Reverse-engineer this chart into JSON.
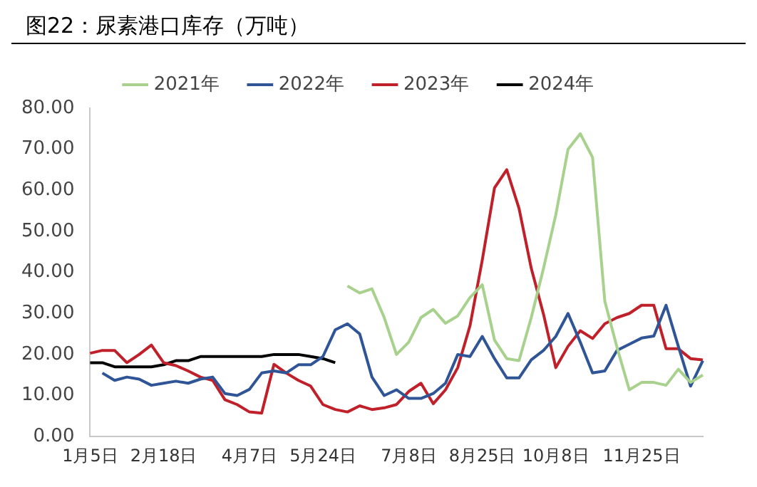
{
  "chart_data": {
    "type": "line",
    "title": "图22：尿素港口库存（万吨）",
    "categories": [
      "1月5日",
      null,
      null,
      null,
      null,
      null,
      "2月18日",
      null,
      null,
      null,
      null,
      null,
      null,
      "4月7日",
      null,
      null,
      null,
      null,
      null,
      "5月24日",
      null,
      null,
      null,
      null,
      null,
      null,
      "7月8日",
      null,
      null,
      null,
      null,
      null,
      "8月25日",
      null,
      null,
      null,
      null,
      null,
      "10月8日",
      null,
      null,
      null,
      null,
      null,
      null,
      "11月25日",
      null,
      null,
      null,
      null,
      null
    ],
    "series": [
      {
        "name": "2021年",
        "color": "#a9d18e",
        "values": [
          null,
          null,
          null,
          null,
          null,
          null,
          null,
          null,
          null,
          null,
          null,
          null,
          null,
          null,
          null,
          null,
          null,
          null,
          null,
          null,
          null,
          36.7,
          35,
          36,
          29,
          20,
          23,
          29,
          31,
          27.6,
          29.4,
          33.9,
          37,
          23.5,
          19,
          18.5,
          29,
          41,
          54,
          70,
          73.8,
          68,
          33,
          21.7,
          11.4,
          13.2,
          13.2,
          12.5,
          16.4,
          13.2,
          15
        ]
      },
      {
        "name": "2022年",
        "color": "#2f5597",
        "values": [
          null,
          15.5,
          13.7,
          14.5,
          14,
          12.5,
          13,
          13.5,
          13,
          14,
          14.5,
          10.5,
          10,
          11.5,
          15.5,
          16,
          15.5,
          17.5,
          17.5,
          19.5,
          26,
          27.5,
          25,
          14.5,
          10,
          11.4,
          9.3,
          9.3,
          10.5,
          13,
          20,
          19.5,
          24.4,
          19,
          14.3,
          14.3,
          18.7,
          21,
          24.4,
          30,
          23,
          15.5,
          16,
          21,
          22.5,
          24,
          24.5,
          32,
          22,
          12.3,
          18.5
        ]
      },
      {
        "name": "2023年",
        "color": "#c0202a",
        "values": [
          20.3,
          21,
          21,
          18,
          20,
          22.3,
          18,
          17.3,
          16,
          14.5,
          13.7,
          9,
          7.8,
          6,
          5.7,
          17.6,
          15.5,
          13.7,
          12.3,
          7.8,
          6.6,
          6,
          7.5,
          6.6,
          7,
          7.8,
          11,
          13,
          8,
          11.4,
          16.8,
          27,
          43,
          60.6,
          65,
          55.6,
          41,
          29.8,
          16.8,
          22,
          25.8,
          23.9,
          27.5,
          29,
          30,
          32,
          32,
          21.4,
          21.4,
          19,
          18.7
        ]
      },
      {
        "name": "2024年",
        "color": "#000000",
        "values": [
          18,
          18,
          17,
          17,
          17,
          17,
          17.5,
          18.5,
          18.5,
          19.5,
          19.5,
          19.5,
          19.5,
          19.5,
          19.5,
          20,
          20,
          20,
          19.5,
          19,
          18,
          null,
          null,
          null,
          null,
          null,
          null,
          null,
          null,
          null,
          null,
          null,
          null,
          null,
          null,
          null,
          null,
          null,
          null,
          null,
          null,
          null,
          null,
          null,
          null,
          null,
          null,
          null,
          null,
          null,
          null
        ]
      }
    ],
    "ylim": [
      0,
      80
    ],
    "yticks": [
      {
        "value": 0,
        "label": "0.00"
      },
      {
        "value": 10,
        "label": "10.00"
      },
      {
        "value": 20,
        "label": "20.00"
      },
      {
        "value": 30,
        "label": "30.00"
      },
      {
        "value": 40,
        "label": "40.00"
      },
      {
        "value": 50,
        "label": "50.00"
      },
      {
        "value": 60,
        "label": "60.00"
      },
      {
        "value": 70,
        "label": "70.00"
      },
      {
        "value": 80,
        "label": "80.00"
      }
    ],
    "grid": false,
    "legend": "top",
    "marker": "none",
    "line_style": "solid"
  }
}
